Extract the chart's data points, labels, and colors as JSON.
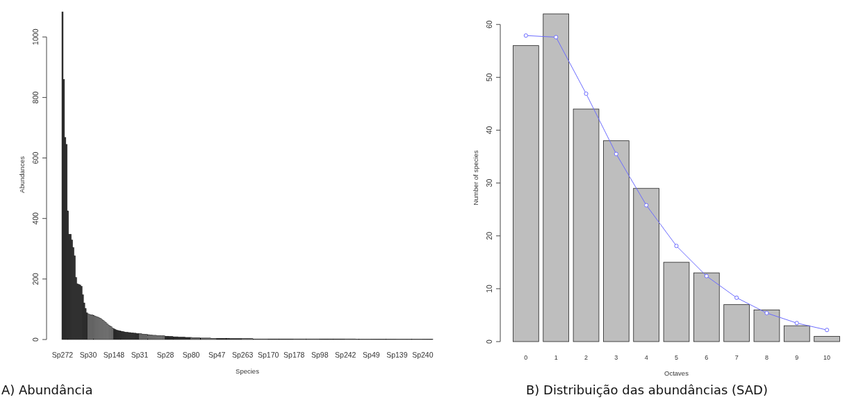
{
  "chart_data": [
    {
      "type": "bar",
      "xlabel": "Species",
      "ylabel": "Abundances",
      "ylim": [
        0,
        1090
      ],
      "yticks": [
        0,
        200,
        400,
        600,
        800,
        1000
      ],
      "annotations": [
        "A) Abundância"
      ],
      "categories": [
        "Sp272",
        null,
        null,
        null,
        null,
        null,
        null,
        null,
        null,
        null,
        null,
        null,
        null,
        null,
        null,
        null,
        null,
        null,
        null,
        "Sp30",
        null,
        null,
        null,
        null,
        null,
        null,
        null,
        null,
        null,
        null,
        null,
        null,
        null,
        null,
        null,
        null,
        null,
        null,
        "Sp148",
        null,
        null,
        null,
        null,
        null,
        null,
        null,
        null,
        null,
        null,
        null,
        null,
        null,
        null,
        null,
        null,
        null,
        null,
        "Sp31",
        null,
        null,
        null,
        null,
        null,
        null,
        null,
        null,
        null,
        null,
        null,
        null,
        null,
        null,
        null,
        null,
        null,
        null,
        "Sp28",
        null,
        null,
        null,
        null,
        null,
        null,
        null,
        null,
        null,
        null,
        null,
        null,
        null,
        null,
        null,
        null,
        null,
        null,
        "Sp80",
        null,
        null,
        null,
        null,
        null,
        null,
        null,
        null,
        null,
        null,
        null,
        null,
        null,
        null,
        null,
        null,
        null,
        null,
        "Sp47",
        null,
        null,
        null,
        null,
        null,
        null,
        null,
        null,
        null,
        null,
        null,
        null,
        null,
        null,
        null,
        null,
        null,
        null,
        "Sp263",
        null,
        null,
        null,
        null,
        null,
        null,
        null,
        null,
        null,
        null,
        null,
        null,
        null,
        null,
        null,
        null,
        null,
        null,
        "Sp170",
        null,
        null,
        null,
        null,
        null,
        null,
        null,
        null,
        null,
        null,
        null,
        null,
        null,
        null,
        null,
        null,
        null,
        null,
        "Sp178",
        null,
        null,
        null,
        null,
        null,
        null,
        null,
        null,
        null,
        null,
        null,
        null,
        null,
        null,
        null,
        null,
        null,
        null,
        "Sp98",
        null,
        null,
        null,
        null,
        null,
        null,
        null,
        null,
        null,
        null,
        null,
        null,
        null,
        null,
        null,
        null,
        null,
        null,
        "Sp242",
        null,
        null,
        null,
        null,
        null,
        null,
        null,
        null,
        null,
        null,
        null,
        null,
        null,
        null,
        null,
        null,
        null,
        null,
        "Sp49",
        null,
        null,
        null,
        null,
        null,
        null,
        null,
        null,
        null,
        null,
        null,
        null,
        null,
        null,
        null,
        null,
        null,
        null,
        "Sp139",
        null,
        null,
        null,
        null,
        null,
        null,
        null,
        null,
        null,
        null,
        null,
        null,
        null,
        null,
        null,
        null,
        null,
        null,
        "Sp240",
        null,
        null,
        null,
        null,
        null,
        null,
        null
      ],
      "values": [
        1083,
        860,
        668,
        645,
        425,
        348,
        348,
        329,
        304,
        277,
        205,
        184,
        182,
        180,
        176,
        148,
        121,
        103,
        88,
        85,
        83,
        82,
        81,
        80,
        78,
        76,
        74,
        72,
        70,
        67,
        64,
        60,
        56,
        52,
        48,
        45,
        42,
        38,
        35,
        33,
        31,
        30,
        29,
        28,
        27,
        26,
        25,
        24,
        24,
        23,
        23,
        22,
        22,
        21,
        21,
        20,
        20,
        19,
        19,
        18,
        18,
        17,
        17,
        16,
        16,
        15,
        15,
        14,
        14,
        14,
        13,
        13,
        13,
        12,
        12,
        12,
        11,
        11,
        11,
        10,
        10,
        10,
        9,
        9,
        9,
        9,
        8,
        8,
        8,
        8,
        8,
        7,
        7,
        7,
        7,
        7,
        6,
        6,
        6,
        6,
        6,
        6,
        5,
        5,
        5,
        5,
        5,
        5,
        5,
        5,
        4,
        4,
        4,
        4,
        4,
        4,
        4,
        4,
        4,
        4,
        4,
        4,
        4,
        4,
        3,
        3,
        3,
        3,
        3,
        3,
        3,
        3,
        3,
        3,
        3,
        3,
        3,
        3,
        3,
        3,
        3,
        2,
        2,
        2,
        2,
        2,
        2,
        2,
        2,
        2,
        2,
        2,
        2,
        2,
        2,
        2,
        2,
        2,
        2,
        2,
        2,
        2,
        2,
        2,
        2,
        2,
        2,
        2,
        2,
        2,
        2,
        2,
        2,
        2,
        2,
        2,
        2,
        2,
        2,
        2,
        2,
        2,
        2,
        2,
        2,
        2,
        2,
        2,
        2,
        2,
        2,
        2,
        2,
        2,
        2,
        2,
        2,
        2,
        2,
        2,
        2,
        2,
        2,
        2,
        2,
        2,
        2,
        2,
        2,
        2,
        2,
        2,
        2,
        2,
        2,
        2,
        2,
        1,
        1,
        1,
        1,
        1,
        1,
        1,
        1,
        1,
        1,
        1,
        1,
        1,
        1,
        1,
        1,
        1,
        1,
        1,
        1,
        1,
        1,
        1,
        1,
        1,
        1,
        1,
        1,
        1,
        1,
        1,
        1,
        1,
        1,
        1,
        1,
        1,
        1,
        1,
        1,
        1,
        1,
        1,
        1,
        1,
        1,
        1,
        1,
        1,
        1,
        1,
        1,
        1,
        1,
        1,
        1,
        1
      ],
      "colors": [
        "#333333",
        "#333333",
        "#333333",
        "#333333",
        "#333333",
        "#333333",
        "#333333",
        "#333333",
        "#333333",
        "#333333",
        "#333333",
        "#333333",
        "#333333",
        "#333333",
        "#333333",
        "#333333",
        "#333333",
        "#333333",
        "#333333",
        "#8c8c8c",
        "#8c8c8c",
        "#8c8c8c",
        "#8c8c8c",
        "#8c8c8c",
        "#8c8c8c",
        "#8c8c8c",
        "#8c8c8c",
        "#8c8c8c",
        "#8c8c8c",
        "#8c8c8c",
        "#8c8c8c",
        "#8c8c8c",
        "#8c8c8c",
        "#8c8c8c",
        "#8c8c8c",
        "#8c8c8c",
        "#8c8c8c",
        "#8c8c8c",
        "#333333",
        "#333333",
        "#333333",
        "#333333",
        "#333333",
        "#333333",
        "#333333",
        "#333333",
        "#333333",
        "#333333",
        "#333333",
        "#333333",
        "#333333",
        "#333333",
        "#333333",
        "#333333",
        "#333333",
        "#333333",
        "#333333",
        "#8c8c8c",
        "#8c8c8c",
        "#8c8c8c",
        "#8c8c8c",
        "#8c8c8c",
        "#8c8c8c",
        "#8c8c8c",
        "#8c8c8c",
        "#8c8c8c",
        "#8c8c8c",
        "#8c8c8c",
        "#8c8c8c",
        "#8c8c8c",
        "#8c8c8c",
        "#8c8c8c",
        "#8c8c8c",
        "#8c8c8c",
        "#8c8c8c",
        "#8c8c8c",
        "#333333",
        "#333333",
        "#333333",
        "#333333",
        "#333333",
        "#333333",
        "#333333",
        "#333333",
        "#333333",
        "#333333",
        "#333333",
        "#333333",
        "#333333",
        "#333333",
        "#333333",
        "#333333",
        "#333333",
        "#333333",
        "#333333",
        "#8c8c8c",
        "#8c8c8c",
        "#8c8c8c",
        "#8c8c8c",
        "#8c8c8c",
        "#8c8c8c",
        "#8c8c8c",
        "#8c8c8c",
        "#8c8c8c",
        "#8c8c8c",
        "#8c8c8c",
        "#8c8c8c",
        "#8c8c8c",
        "#8c8c8c",
        "#8c8c8c",
        "#8c8c8c",
        "#8c8c8c",
        "#8c8c8c",
        "#8c8c8c",
        "#333333",
        "#333333",
        "#333333",
        "#333333",
        "#333333",
        "#333333",
        "#333333",
        "#333333",
        "#333333",
        "#333333",
        "#333333",
        "#333333",
        "#333333",
        "#333333",
        "#333333",
        "#333333",
        "#333333",
        "#333333",
        "#333333",
        "#8c8c8c",
        "#8c8c8c",
        "#8c8c8c",
        "#8c8c8c",
        "#8c8c8c",
        "#8c8c8c",
        "#8c8c8c",
        "#8c8c8c",
        "#8c8c8c",
        "#8c8c8c",
        "#8c8c8c",
        "#8c8c8c",
        "#8c8c8c",
        "#8c8c8c",
        "#8c8c8c",
        "#8c8c8c",
        "#8c8c8c",
        "#8c8c8c",
        "#8c8c8c",
        "#333333",
        "#333333",
        "#333333",
        "#333333",
        "#333333",
        "#333333",
        "#333333",
        "#333333",
        "#333333",
        "#333333",
        "#333333",
        "#333333",
        "#333333",
        "#333333",
        "#333333",
        "#333333",
        "#333333",
        "#333333",
        "#333333",
        "#8c8c8c",
        "#8c8c8c",
        "#8c8c8c",
        "#8c8c8c",
        "#8c8c8c",
        "#8c8c8c",
        "#8c8c8c",
        "#8c8c8c",
        "#8c8c8c",
        "#8c8c8c",
        "#8c8c8c",
        "#8c8c8c",
        "#8c8c8c",
        "#8c8c8c",
        "#8c8c8c",
        "#8c8c8c",
        "#8c8c8c",
        "#8c8c8c",
        "#8c8c8c",
        "#333333",
        "#333333",
        "#333333",
        "#333333",
        "#333333",
        "#333333",
        "#333333",
        "#333333",
        "#333333",
        "#333333",
        "#333333",
        "#333333",
        "#333333",
        "#333333",
        "#333333",
        "#333333",
        "#333333",
        "#333333",
        "#333333",
        "#8c8c8c",
        "#8c8c8c",
        "#8c8c8c",
        "#8c8c8c",
        "#8c8c8c",
        "#8c8c8c",
        "#8c8c8c",
        "#8c8c8c",
        "#8c8c8c",
        "#8c8c8c",
        "#8c8c8c",
        "#8c8c8c",
        "#8c8c8c",
        "#8c8c8c",
        "#8c8c8c",
        "#8c8c8c",
        "#8c8c8c",
        "#8c8c8c",
        "#8c8c8c",
        "#333333",
        "#333333",
        "#333333",
        "#333333",
        "#333333",
        "#333333",
        "#333333",
        "#333333",
        "#333333",
        "#333333",
        "#333333",
        "#333333",
        "#333333",
        "#333333",
        "#333333",
        "#333333",
        "#333333",
        "#333333",
        "#333333",
        "#8c8c8c",
        "#8c8c8c",
        "#8c8c8c",
        "#8c8c8c",
        "#8c8c8c",
        "#8c8c8c",
        "#8c8c8c",
        "#8c8c8c",
        "#8c8c8c",
        "#8c8c8c",
        "#8c8c8c",
        "#8c8c8c",
        "#8c8c8c",
        "#8c8c8c",
        "#8c8c8c",
        "#8c8c8c",
        "#8c8c8c",
        "#8c8c8c",
        "#8c8c8c",
        "#333333",
        "#333333",
        "#333333",
        "#333333",
        "#333333",
        "#333333",
        "#333333",
        "#333333"
      ]
    },
    {
      "type": "bar",
      "xlabel": "Octaves",
      "ylabel": "Number of species",
      "ylim": [
        0,
        62
      ],
      "yticks": [
        0,
        10,
        20,
        30,
        40,
        50,
        60
      ],
      "annotations": [
        "B) Distribuição das abundâncias (SAD)"
      ],
      "categories": [
        "0",
        "1",
        "2",
        "3",
        "4",
        "5",
        "6",
        "7",
        "8",
        "9",
        "10"
      ],
      "series": [
        {
          "color": "#bebebe",
          "values": [
            56,
            62,
            44,
            38,
            29,
            15,
            13,
            7,
            6,
            3,
            1
          ]
        },
        {
          "type": "line",
          "color": "#6b6bff",
          "marker": "circle",
          "values": [
            57.9,
            57.6,
            46.9,
            35.5,
            25.8,
            18.1,
            12.4,
            8.3,
            5.4,
            3.5,
            2.2
          ]
        }
      ]
    }
  ]
}
